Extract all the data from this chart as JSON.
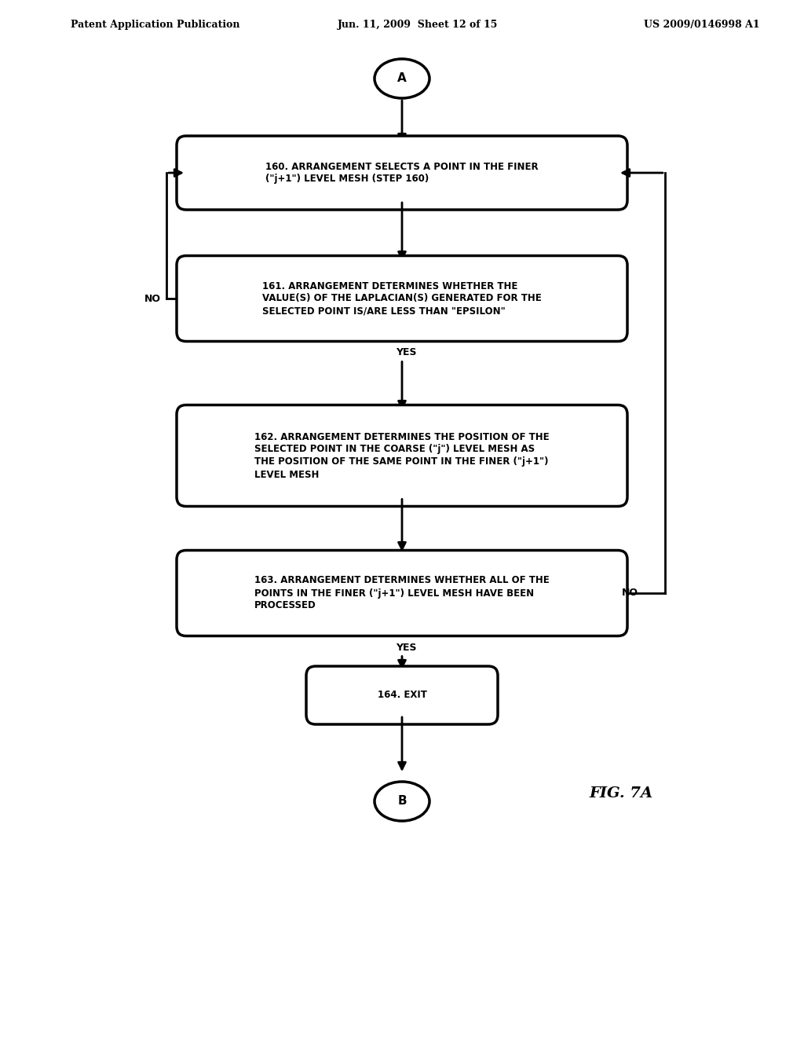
{
  "header_left": "Patent Application Publication",
  "header_mid": "Jun. 11, 2009  Sheet 12 of 15",
  "header_right": "US 2009/0146998 A1",
  "figure_label": "FIG. 7A",
  "node_A_label": "A",
  "node_B_label": "B",
  "box160_text": "160. ARRANGEMENT SELECTS A POINT IN THE FINER\n(\"j+1\") LEVEL MESH (STEP 160)",
  "box161_text": "161. ARRANGEMENT DETERMINES WHETHER THE\nVALUE(S) OF THE LAPLACIAN(S) GENERATED FOR THE\nSELECTED POINT IS/ARE LESS THAN \"EPSILON\"",
  "box162_text": "162. ARRANGEMENT DETERMINES THE POSITION OF THE\nSELECTED POINT IN THE COARSE (\"j\") LEVEL MESH AS\nTHE POSITION OF THE SAME POINT IN THE FINER (\"j+1\")\nLEVEL MESH",
  "box163_text": "163. ARRANGEMENT DETERMINES WHETHER ALL OF THE\nPOINTS IN THE FINER (\"j+1\") LEVEL MESH HAVE BEEN\nPROCESSED",
  "box164_text": "164. EXIT",
  "yes_label": "YES",
  "no_label": "NO",
  "background_color": "#ffffff",
  "box_fill": "#ffffff",
  "box_edge": "#000000",
  "text_color": "#000000",
  "arrow_color": "#000000",
  "line_width": 2.5,
  "font_size_box": 9,
  "font_size_header": 9,
  "font_size_label": 10,
  "font_size_fig": 13
}
